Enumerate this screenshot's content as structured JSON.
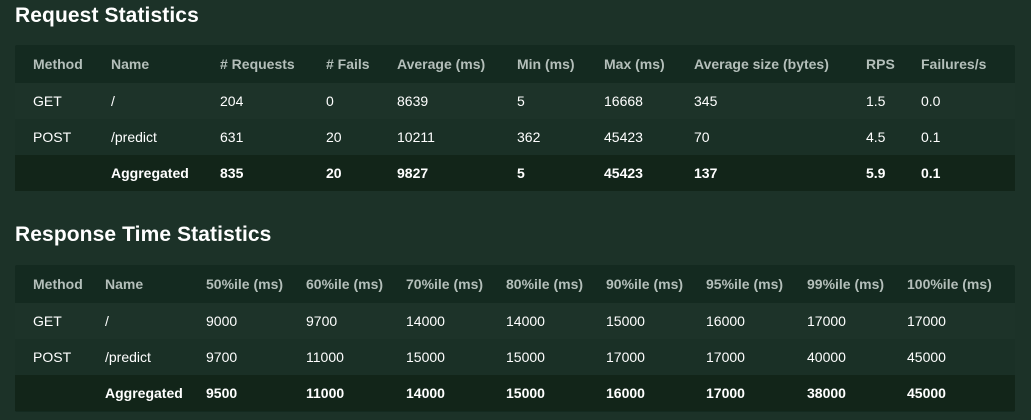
{
  "request_stats": {
    "title": "Request Statistics",
    "headers": [
      "Method",
      "Name",
      "# Requests",
      "# Fails",
      "Average (ms)",
      "Min (ms)",
      "Max (ms)",
      "Average size (bytes)",
      "RPS",
      "Failures/s"
    ],
    "rows": [
      [
        "GET",
        "/",
        "204",
        "0",
        "8639",
        "5",
        "16668",
        "345",
        "1.5",
        "0.0"
      ],
      [
        "POST",
        "/predict",
        "631",
        "20",
        "10211",
        "362",
        "45423",
        "70",
        "4.5",
        "0.1"
      ],
      [
        "",
        "Aggregated",
        "835",
        "20",
        "9827",
        "5",
        "45423",
        "137",
        "5.9",
        "0.1"
      ]
    ]
  },
  "response_stats": {
    "title": "Response Time Statistics",
    "headers": [
      "Method",
      "Name",
      "50%ile (ms)",
      "60%ile (ms)",
      "70%ile (ms)",
      "80%ile (ms)",
      "90%ile (ms)",
      "95%ile (ms)",
      "99%ile (ms)",
      "100%ile (ms)"
    ],
    "rows": [
      [
        "GET",
        "/",
        "9000",
        "9700",
        "14000",
        "14000",
        "15000",
        "16000",
        "17000",
        "17000"
      ],
      [
        "POST",
        "/predict",
        "9700",
        "11000",
        "15000",
        "15000",
        "17000",
        "17000",
        "40000",
        "45000"
      ],
      [
        "",
        "Aggregated",
        "9500",
        "11000",
        "14000",
        "15000",
        "16000",
        "17000",
        "38000",
        "45000"
      ]
    ]
  },
  "colors": {
    "page_background": "#1c3228",
    "table_background": "#142a20",
    "header_text": "#b4bfba",
    "body_text": "#ffffff"
  }
}
